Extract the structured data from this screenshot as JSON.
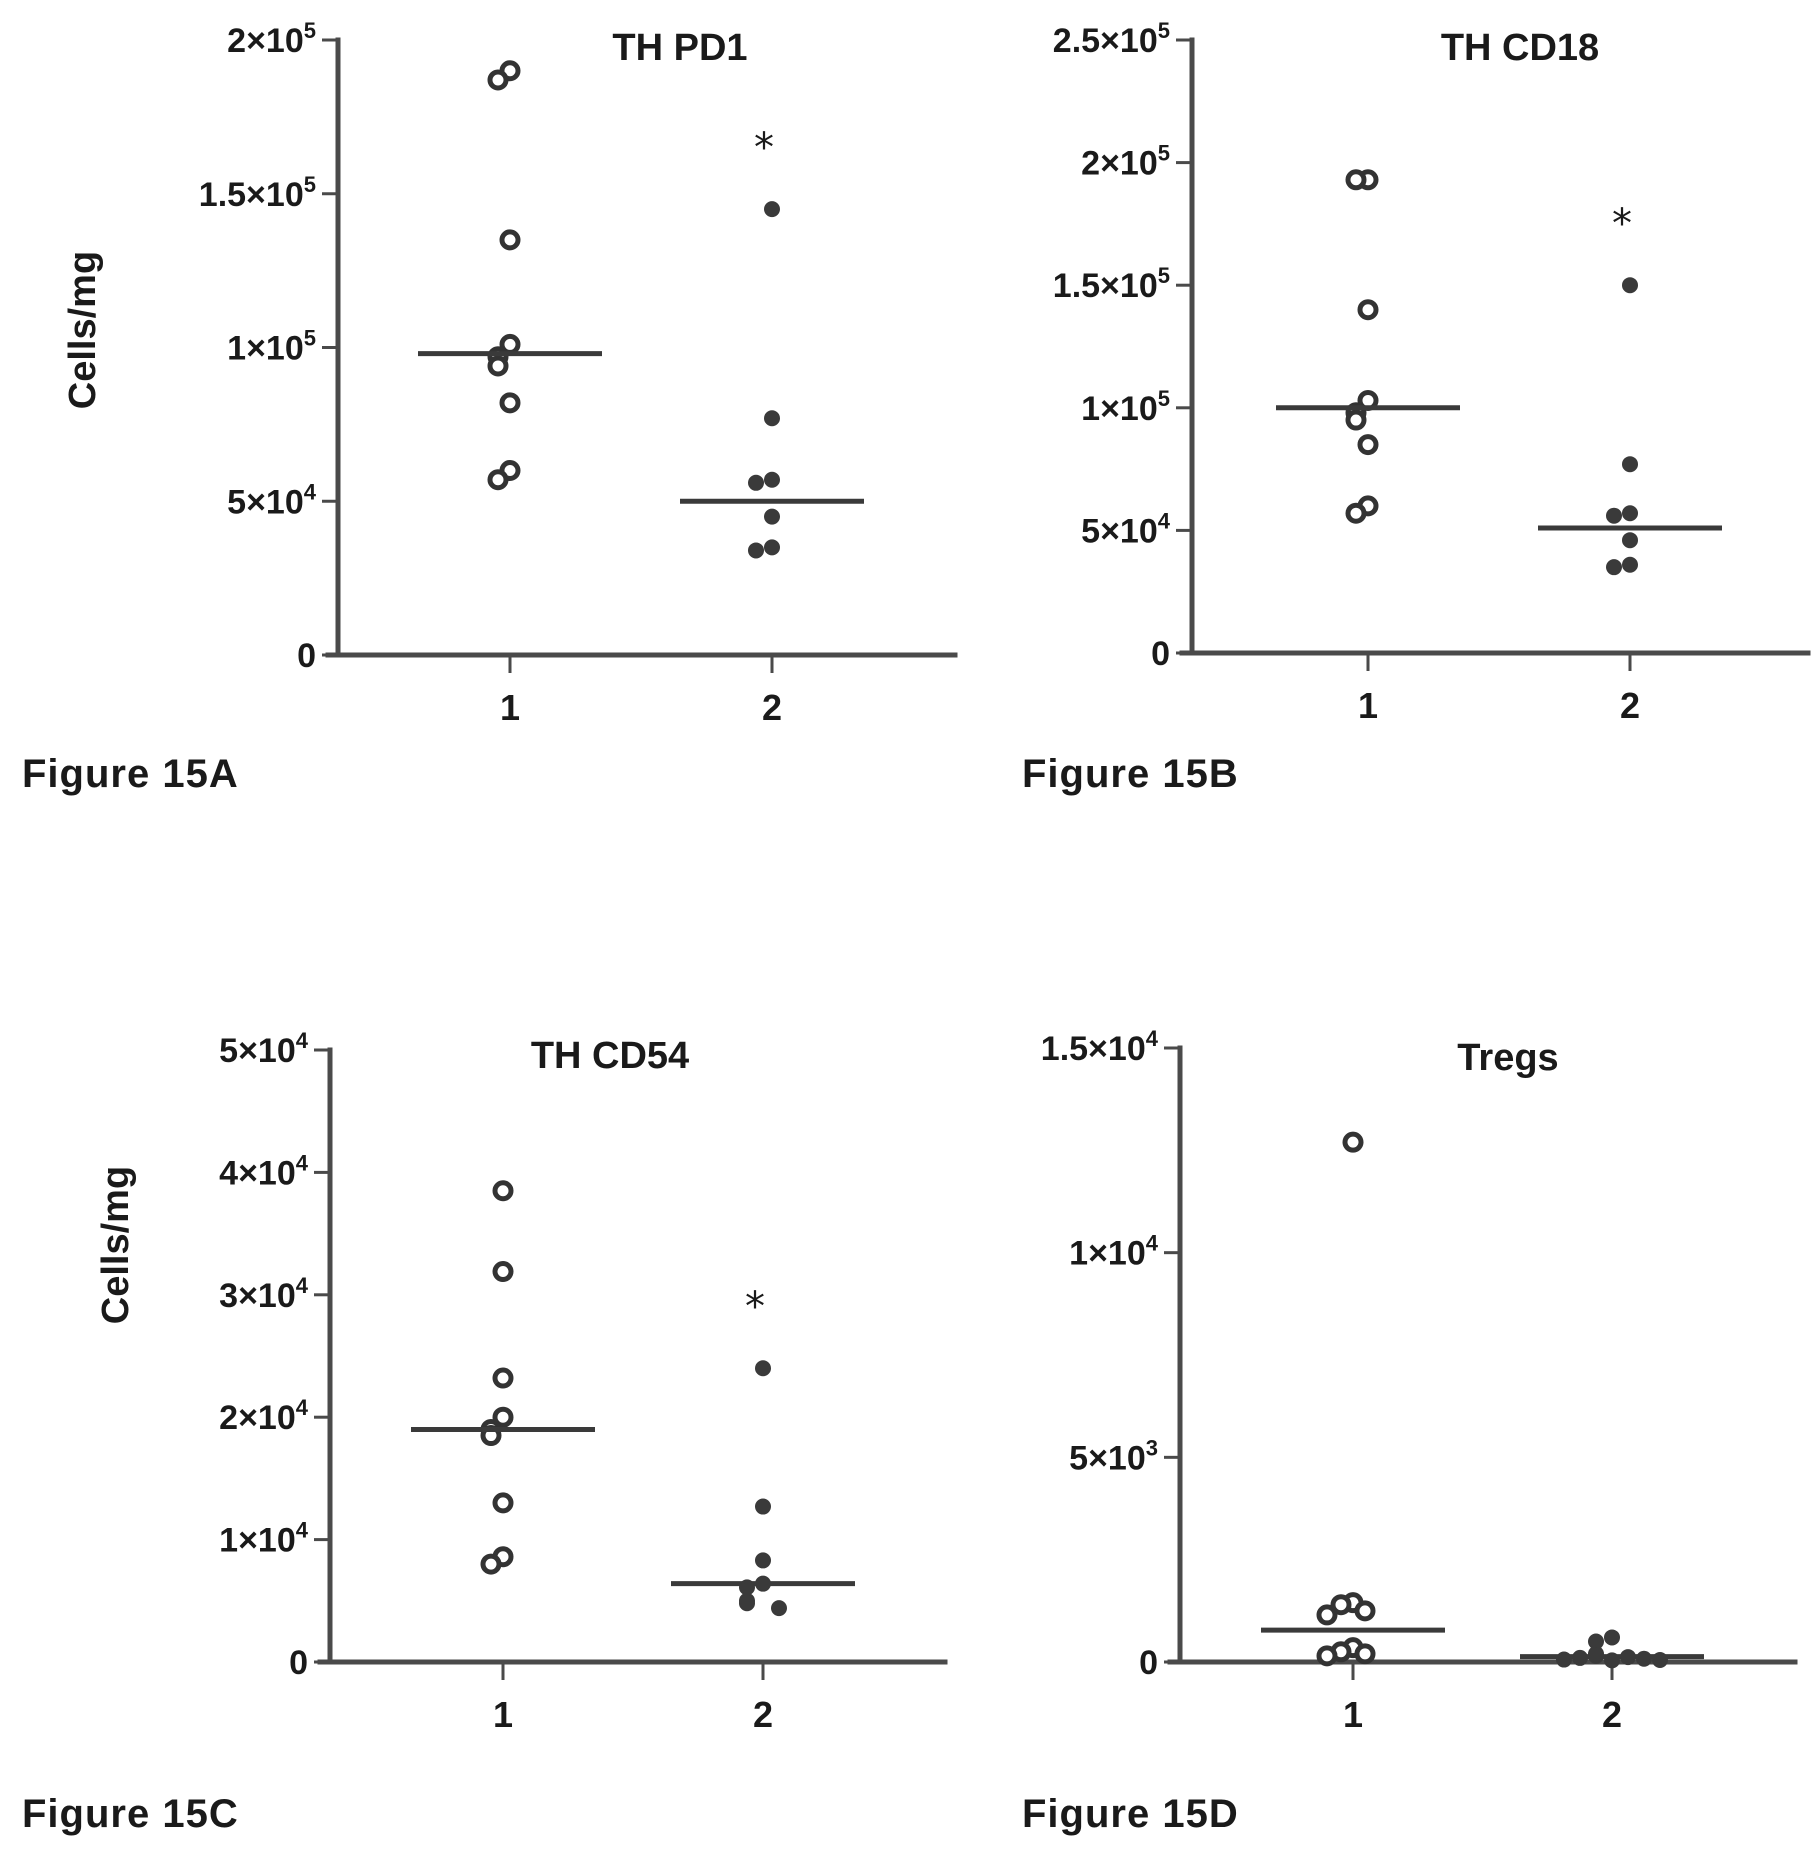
{
  "figure_labels": {
    "a": "Figure 15A",
    "b": "Figure 15B",
    "c": "Figure 15C",
    "d": "Figure 15D"
  },
  "chart_data": [
    {
      "id": "A",
      "type": "scatter",
      "title": "TH PD1",
      "ylabel": "Cells/mg",
      "xlabel": "",
      "categories": [
        "1",
        "2"
      ],
      "ylim": [
        0,
        200000
      ],
      "yticks": [
        {
          "value": 0,
          "base": "0",
          "exp": ""
        },
        {
          "value": 50000,
          "base": "5×10",
          "exp": "4"
        },
        {
          "value": 100000,
          "base": "1×10",
          "exp": "5"
        },
        {
          "value": 150000,
          "base": "1.5×10",
          "exp": "5"
        },
        {
          "value": 200000,
          "base": "2×10",
          "exp": "5"
        }
      ],
      "series": [
        {
          "category": "1",
          "marker": "open",
          "values": [
            190000,
            187000,
            135000,
            101000,
            97000,
            94000,
            82000,
            60000,
            57000
          ],
          "median": 98000
        },
        {
          "category": "2",
          "marker": "filled",
          "values": [
            145000,
            77000,
            57000,
            56000,
            45000,
            35000,
            34000
          ],
          "median": 50000,
          "annotation": "*"
        }
      ]
    },
    {
      "id": "B",
      "type": "scatter",
      "title": "TH CD18",
      "ylabel": "",
      "xlabel": "",
      "categories": [
        "1",
        "2"
      ],
      "ylim": [
        0,
        250000
      ],
      "yticks": [
        {
          "value": 0,
          "base": "0",
          "exp": ""
        },
        {
          "value": 50000,
          "base": "5×10",
          "exp": "4"
        },
        {
          "value": 100000,
          "base": "1×10",
          "exp": "5"
        },
        {
          "value": 150000,
          "base": "1.5×10",
          "exp": "5"
        },
        {
          "value": 200000,
          "base": "2×10",
          "exp": "5"
        },
        {
          "value": 250000,
          "base": "2.5×10",
          "exp": "5"
        }
      ],
      "series": [
        {
          "category": "1",
          "marker": "open",
          "values": [
            193000,
            193000,
            140000,
            103000,
            98000,
            95000,
            85000,
            60000,
            57000
          ],
          "median": 100000
        },
        {
          "category": "2",
          "marker": "filled",
          "values": [
            150000,
            77000,
            57000,
            56000,
            46000,
            36000,
            35000
          ],
          "median": 51000,
          "annotation": "*"
        }
      ]
    },
    {
      "id": "C",
      "type": "scatter",
      "title": "TH CD54",
      "ylabel": "Cells/mg",
      "xlabel": "",
      "categories": [
        "1",
        "2"
      ],
      "ylim": [
        0,
        50000
      ],
      "yticks": [
        {
          "value": 0,
          "base": "0",
          "exp": ""
        },
        {
          "value": 10000,
          "base": "1×10",
          "exp": "4"
        },
        {
          "value": 20000,
          "base": "2×10",
          "exp": "4"
        },
        {
          "value": 30000,
          "base": "3×10",
          "exp": "4"
        },
        {
          "value": 40000,
          "base": "4×10",
          "exp": "4"
        },
        {
          "value": 50000,
          "base": "5×10",
          "exp": "4"
        }
      ],
      "series": [
        {
          "category": "1",
          "marker": "open",
          "values": [
            38500,
            31900,
            23200,
            20000,
            19000,
            18500,
            13000,
            8600,
            8000
          ],
          "median": 19000
        },
        {
          "category": "2",
          "marker": "filled",
          "values": [
            24000,
            12700,
            8300,
            6400,
            6100,
            5000,
            4800,
            4400
          ],
          "median": 6400,
          "annotation": "*"
        }
      ]
    },
    {
      "id": "D",
      "type": "scatter",
      "title": "Tregs",
      "ylabel": "",
      "xlabel": "",
      "categories": [
        "1",
        "2"
      ],
      "ylim": [
        0,
        15000
      ],
      "yticks": [
        {
          "value": 0,
          "base": "0",
          "exp": ""
        },
        {
          "value": 5000,
          "base": "5×10",
          "exp": "3"
        },
        {
          "value": 10000,
          "base": "1×10",
          "exp": "4"
        },
        {
          "value": 15000,
          "base": "1.5×10",
          "exp": "4"
        }
      ],
      "series": [
        {
          "category": "1",
          "marker": "open",
          "values": [
            12700,
            1450,
            1400,
            1250,
            1150,
            350,
            250,
            200,
            150
          ],
          "median": 780
        },
        {
          "category": "2",
          "marker": "filled",
          "values": [
            600,
            500,
            200,
            150,
            120,
            100,
            80,
            60,
            50,
            40
          ],
          "median": 130
        }
      ]
    }
  ]
}
